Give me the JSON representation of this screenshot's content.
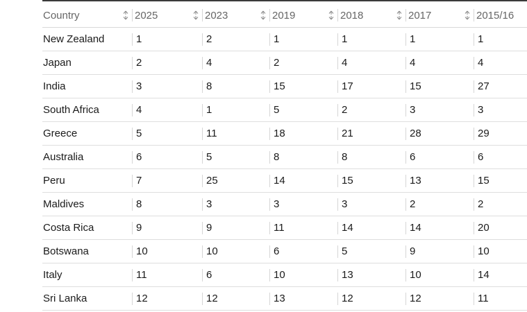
{
  "table": {
    "headers": {
      "country": "Country",
      "years": [
        "2025",
        "2023",
        "2019",
        "2018",
        "2017",
        "2015/16"
      ]
    },
    "rows": [
      {
        "country": "New Zealand",
        "ranks": [
          "1",
          "2",
          "1",
          "1",
          "1",
          "1"
        ]
      },
      {
        "country": "Japan",
        "ranks": [
          "2",
          "4",
          "2",
          "4",
          "4",
          "4"
        ]
      },
      {
        "country": "India",
        "ranks": [
          "3",
          "8",
          "15",
          "17",
          "15",
          "27"
        ]
      },
      {
        "country": "South Africa",
        "ranks": [
          "4",
          "1",
          "5",
          "2",
          "3",
          "3"
        ]
      },
      {
        "country": "Greece",
        "ranks": [
          "5",
          "11",
          "18",
          "21",
          "28",
          "29"
        ]
      },
      {
        "country": "Australia",
        "ranks": [
          "6",
          "5",
          "8",
          "8",
          "6",
          "6"
        ]
      },
      {
        "country": "Peru",
        "ranks": [
          "7",
          "25",
          "14",
          "15",
          "13",
          "15"
        ]
      },
      {
        "country": "Maldives",
        "ranks": [
          "8",
          "3",
          "3",
          "3",
          "2",
          "2"
        ]
      },
      {
        "country": "Costa Rica",
        "ranks": [
          "9",
          "9",
          "11",
          "14",
          "14",
          "20"
        ]
      },
      {
        "country": "Botswana",
        "ranks": [
          "10",
          "10",
          "6",
          "5",
          "9",
          "10"
        ]
      },
      {
        "country": "Italy",
        "ranks": [
          "11",
          "6",
          "10",
          "13",
          "10",
          "14"
        ]
      },
      {
        "country": "Sri Lanka",
        "ranks": [
          "12",
          "12",
          "13",
          "12",
          "12",
          "11"
        ]
      }
    ]
  },
  "icons": {
    "sort": "sort-up-down-icon"
  },
  "colors": {
    "header_text": "#666666",
    "body_text": "#1a1a1a",
    "row_divider": "#dedede",
    "top_rule": "#3a3a3a"
  }
}
